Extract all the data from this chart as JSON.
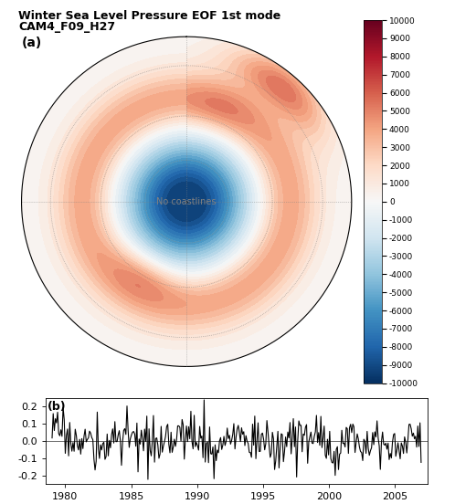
{
  "title_line1": "Winter Sea Level Pressure EOF 1st mode",
  "title_line2": "CAM4_F09_H27",
  "panel_a_label": "(a)",
  "panel_b_label": "(b)",
  "colorbar_ticks": [
    -10000,
    -9000,
    -8000,
    -7000,
    -6000,
    -5000,
    -4000,
    -3000,
    -2000,
    -1000,
    0,
    1000,
    2000,
    3000,
    4000,
    5000,
    6000,
    7000,
    8000,
    9000,
    10000
  ],
  "ts_ylim": [
    -0.25,
    0.25
  ],
  "ts_yticks": [
    -0.2,
    -0.1,
    0.0,
    0.1,
    0.2
  ],
  "ts_xlim": [
    1978.5,
    2007.5
  ],
  "ts_xticks": [
    1980,
    1985,
    1990,
    1995,
    2000,
    2005
  ],
  "ts_color": "black",
  "ts_linewidth": 0.8,
  "background_color": "white",
  "map_vmin": -10000,
  "map_vmax": 10000,
  "dpi": 100,
  "min_lat": 20
}
